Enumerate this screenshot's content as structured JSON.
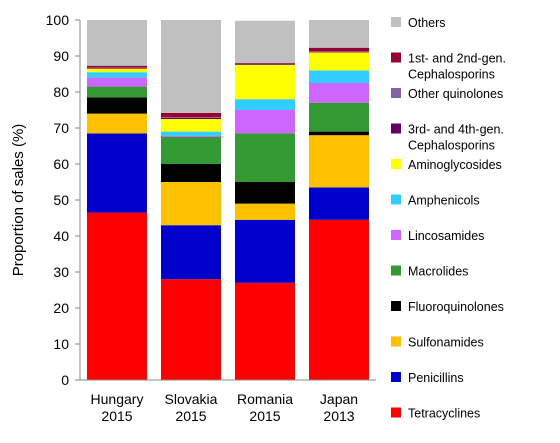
{
  "chart_data": {
    "type": "bar",
    "stacked": true,
    "ylabel": "Proportion of sales (%)",
    "ylim": [
      0,
      100
    ],
    "yticks": [
      "0",
      "10",
      "20",
      "30",
      "40",
      "50",
      "60",
      "70",
      "80",
      "90",
      "100"
    ],
    "categories": [
      [
        "Hungary",
        "2015"
      ],
      [
        "Slovakia",
        "2015"
      ],
      [
        "Romania",
        "2015"
      ],
      [
        "Japan",
        "2013"
      ]
    ],
    "grid": false,
    "legend_position": "right",
    "series": [
      {
        "name": "Tetracyclines",
        "color": "#ff0000",
        "values": [
          46.5,
          28,
          27,
          44.5
        ]
      },
      {
        "name": "Penicillins",
        "color": "#0000cc",
        "values": [
          22,
          15,
          17.5,
          9
        ]
      },
      {
        "name": "Sulfonamides",
        "color": "#ffc000",
        "values": [
          5.5,
          12,
          4.5,
          14.5
        ]
      },
      {
        "name": "Fluoroquinolones",
        "color": "#000000",
        "values": [
          4.5,
          5,
          6,
          1
        ]
      },
      {
        "name": "Macrolides",
        "color": "#339933",
        "values": [
          3,
          7.5,
          13.5,
          8
        ]
      },
      {
        "name": "Lincosamides",
        "color": "#cc66ff",
        "values": [
          2.5,
          0.3,
          6.5,
          5.5
        ]
      },
      {
        "name": "Amphenicols",
        "color": "#33ccff",
        "values": [
          1.5,
          1.2,
          3,
          3.5
        ]
      },
      {
        "name": "Aminoglycosides",
        "color": "#ffff00",
        "values": [
          1,
          3.5,
          9.5,
          5
        ]
      },
      {
        "name": "3rd- and 4th-gen. Cephalosporins",
        "color": "#660066",
        "values": [
          0.2,
          0.3,
          0.2,
          0.2
        ]
      },
      {
        "name": "Other quinolones",
        "color": "#8064a2",
        "values": [
          0.1,
          0.2,
          0.2,
          0.1
        ]
      },
      {
        "name": "1st- and 2nd-gen. Cephalosporins",
        "color": "#990033",
        "values": [
          0.5,
          1.2,
          0.2,
          1
        ]
      },
      {
        "name": "Others",
        "color": "#c0c0c0",
        "values": [
          12.7,
          25.8,
          11.7,
          7.7
        ]
      }
    ]
  }
}
